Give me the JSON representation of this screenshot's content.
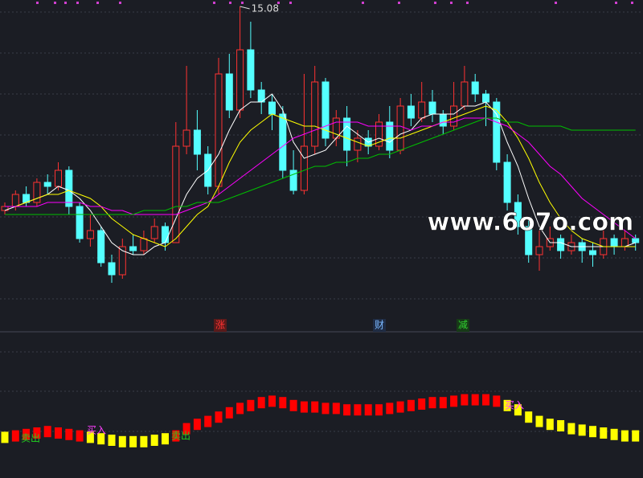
{
  "chart_data": [
    {
      "type": "candlestick",
      "up_color": "#ff3232",
      "down_color": "#54ffff",
      "ylim": [
        7.04,
        15.24
      ],
      "open": [
        10.0,
        10.1,
        10.4,
        10.2,
        10.7,
        10.6,
        11.0,
        10.1,
        9.3,
        9.5,
        8.7,
        8.4,
        9.1,
        9.0,
        9.3,
        9.6,
        9.2,
        11.6,
        12.0,
        11.4,
        10.6,
        13.4,
        12.5,
        14.0,
        13.0,
        12.7,
        12.4,
        11.0,
        10.5,
        11.6,
        13.2,
        11.8,
        12.3,
        11.5,
        11.8,
        11.6,
        12.2,
        11.5,
        12.6,
        12.3,
        12.7,
        12.4,
        12.1,
        12.6,
        13.2,
        12.9,
        12.7,
        11.2,
        10.2,
        9.6,
        8.9,
        9.1,
        9.3,
        9.0,
        9.2,
        9.0,
        8.9,
        9.3,
        9.1,
        9.3
      ],
      "close": [
        10.1,
        10.4,
        10.2,
        10.7,
        10.6,
        11.0,
        10.1,
        9.3,
        9.5,
        8.7,
        8.4,
        9.1,
        9.0,
        9.3,
        9.6,
        9.2,
        11.6,
        12.0,
        11.4,
        10.6,
        13.4,
        12.5,
        14.0,
        13.0,
        12.7,
        12.4,
        11.0,
        10.5,
        11.6,
        13.2,
        11.8,
        12.3,
        11.5,
        11.8,
        11.6,
        12.2,
        11.5,
        12.6,
        12.3,
        12.7,
        12.4,
        12.1,
        12.6,
        13.2,
        12.9,
        12.7,
        11.2,
        10.2,
        9.6,
        8.9,
        9.1,
        9.3,
        9.0,
        9.2,
        9.0,
        8.9,
        9.3,
        9.1,
        9.3,
        9.2
      ],
      "high": [
        10.2,
        10.5,
        10.6,
        10.8,
        10.9,
        11.2,
        11.1,
        10.2,
        9.9,
        9.6,
        8.9,
        9.3,
        9.4,
        9.5,
        9.8,
        9.7,
        12.2,
        13.6,
        12.5,
        11.6,
        13.8,
        13.9,
        15.08,
        14.7,
        13.2,
        12.9,
        12.6,
        11.5,
        13.4,
        13.6,
        13.3,
        12.5,
        12.6,
        12.0,
        12.0,
        12.4,
        12.6,
        12.8,
        12.9,
        13.2,
        13.0,
        12.5,
        13.2,
        13.6,
        13.4,
        13.0,
        12.8,
        11.4,
        10.4,
        9.8,
        9.5,
        9.6,
        9.4,
        9.4,
        9.3,
        9.2,
        9.5,
        9.4,
        9.5,
        9.4
      ],
      "low": [
        9.9,
        10.0,
        10.1,
        10.1,
        10.4,
        10.5,
        9.9,
        9.2,
        9.1,
        8.6,
        8.2,
        8.3,
        8.9,
        8.9,
        9.2,
        9.0,
        9.2,
        11.4,
        11.0,
        10.4,
        10.4,
        12.3,
        12.3,
        12.8,
        12.4,
        12.0,
        10.8,
        10.4,
        10.4,
        11.4,
        11.6,
        11.6,
        11.1,
        11.2,
        11.4,
        11.5,
        11.3,
        11.4,
        12.1,
        12.2,
        12.2,
        11.9,
        12.0,
        12.5,
        12.7,
        12.1,
        11.0,
        10.0,
        9.4,
        8.7,
        8.5,
        9.0,
        8.8,
        8.9,
        8.7,
        8.6,
        8.8,
        8.9,
        9.0,
        9.0
      ],
      "series": [
        {
          "color": "#ffffff",
          "values": [
            10.0,
            10.1,
            10.2,
            10.3,
            10.4,
            10.6,
            10.5,
            10.3,
            10.0,
            9.6,
            9.2,
            9.0,
            8.9,
            8.9,
            9.1,
            9.2,
            9.8,
            10.4,
            10.8,
            11.0,
            11.4,
            12.0,
            12.5,
            12.7,
            12.7,
            12.9,
            12.5,
            11.7,
            11.3,
            11.4,
            11.5,
            11.8,
            12.1,
            11.9,
            11.7,
            11.8,
            11.7,
            11.9,
            12.0,
            12.3,
            12.4,
            12.4,
            12.4,
            12.6,
            12.6,
            12.7,
            12.4,
            11.7,
            11.1,
            10.3,
            9.6,
            9.2,
            9.2,
            9.1,
            9.1,
            9.1,
            9.1,
            9.1,
            9.1,
            9.2
          ]
        },
        {
          "color": "#ffff00",
          "values": [
            10.1,
            10.1,
            10.2,
            10.3,
            10.4,
            10.4,
            10.5,
            10.4,
            10.3,
            10.1,
            9.8,
            9.6,
            9.4,
            9.3,
            9.2,
            9.1,
            9.3,
            9.6,
            9.9,
            10.1,
            10.6,
            11.2,
            11.7,
            12.0,
            12.2,
            12.4,
            12.3,
            12.2,
            12.1,
            12.1,
            12.0,
            11.9,
            11.8,
            11.7,
            11.6,
            11.7,
            11.8,
            11.8,
            11.9,
            12.0,
            12.1,
            12.2,
            12.3,
            12.4,
            12.5,
            12.6,
            12.5,
            12.2,
            11.8,
            11.3,
            10.7,
            10.2,
            9.8,
            9.5,
            9.3,
            9.2,
            9.1,
            9.1,
            9.1,
            9.1
          ]
        },
        {
          "color": "#ff00ff",
          "values": [
            10.1,
            10.1,
            10.1,
            10.1,
            10.2,
            10.2,
            10.2,
            10.2,
            10.1,
            10.1,
            10.0,
            10.0,
            9.9,
            9.9,
            9.9,
            9.9,
            9.9,
            10.0,
            10.1,
            10.2,
            10.4,
            10.6,
            10.8,
            11.0,
            11.2,
            11.4,
            11.6,
            11.8,
            11.9,
            12.0,
            12.1,
            12.2,
            12.2,
            12.2,
            12.1,
            12.1,
            12.1,
            12.1,
            12.0,
            12.1,
            12.1,
            12.2,
            12.2,
            12.3,
            12.3,
            12.3,
            12.2,
            12.1,
            11.9,
            11.7,
            11.4,
            11.1,
            10.9,
            10.6,
            10.3,
            10.1,
            9.9,
            9.7,
            9.5,
            9.3
          ]
        },
        {
          "color": "#00c000",
          "values": [
            9.9,
            9.9,
            9.9,
            9.9,
            9.9,
            9.9,
            9.9,
            9.9,
            9.9,
            9.9,
            9.9,
            9.9,
            9.9,
            10.0,
            10.0,
            10.0,
            10.1,
            10.1,
            10.2,
            10.2,
            10.2,
            10.3,
            10.4,
            10.5,
            10.6,
            10.7,
            10.8,
            10.9,
            11.0,
            11.1,
            11.1,
            11.2,
            11.2,
            11.3,
            11.3,
            11.4,
            11.4,
            11.5,
            11.6,
            11.7,
            11.8,
            11.9,
            12.0,
            12.1,
            12.2,
            12.3,
            12.3,
            12.2,
            12.2,
            12.1,
            12.1,
            12.1,
            12.1,
            12.0,
            12.0,
            12.0,
            12.0,
            12.0,
            12.0,
            12.0
          ]
        }
      ],
      "markers": [
        "涨",
        "财",
        "减"
      ],
      "watermark": "www.6o7o.com"
    },
    {
      "type": "bar",
      "ylim": [
        0,
        100
      ],
      "series": [
        {
          "color": "#ff0000",
          "values": [
            null,
            33,
            34,
            35,
            36,
            35,
            34,
            33,
            null,
            null,
            null,
            null,
            null,
            null,
            null,
            null,
            33,
            38,
            41,
            43,
            46,
            49,
            52,
            54,
            56,
            57,
            56,
            54,
            53,
            53,
            52,
            52,
            51,
            51,
            51,
            51,
            52,
            53,
            54,
            55,
            56,
            56,
            57,
            58,
            58,
            58,
            57,
            null,
            null,
            null,
            null,
            null,
            null,
            null,
            null,
            null,
            null,
            null,
            null,
            null
          ]
        },
        {
          "color": "#ffff00",
          "values": [
            32,
            null,
            null,
            null,
            null,
            null,
            null,
            null,
            32,
            31,
            30,
            29,
            29,
            29,
            30,
            31,
            null,
            null,
            null,
            null,
            null,
            null,
            null,
            null,
            null,
            null,
            null,
            null,
            null,
            null,
            null,
            null,
            null,
            null,
            null,
            null,
            null,
            null,
            null,
            null,
            null,
            null,
            null,
            null,
            null,
            null,
            null,
            54,
            51,
            46,
            43,
            41,
            40,
            38,
            37,
            36,
            35,
            34,
            33,
            33
          ]
        }
      ],
      "annotations": [
        "卖出",
        "买入",
        "卖出",
        "买入"
      ]
    }
  ]
}
